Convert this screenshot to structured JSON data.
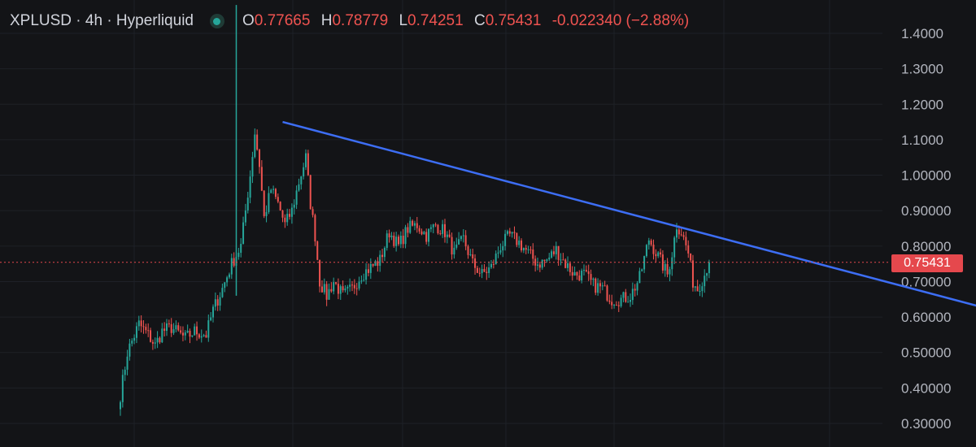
{
  "header": {
    "symbol": "XPLUSD · 4h · Hyperliquid",
    "o_label": "O",
    "o_value": "0.77665",
    "h_label": "H",
    "h_value": "0.78779",
    "l_label": "L",
    "l_value": "0.74251",
    "c_label": "C",
    "c_value": "0.75431",
    "change": "-0.022340 (−2.88%)"
  },
  "colors": {
    "up": "#26a69a",
    "down": "#ef5350",
    "trendline": "#3d6ef5",
    "price_tag": "#e5484d",
    "background": "#131417"
  },
  "status_icon": "market-open-dot-icon",
  "last_price_label": "0.75431",
  "chart_data": {
    "type": "candlestick",
    "y_axis_ticks": [
      "1.4000",
      "1.3000",
      "1.2000",
      "1.1000",
      "1.00000",
      "0.90000",
      "0.80000",
      "0.70000",
      "0.60000",
      "0.50000",
      "0.40000",
      "0.30000"
    ],
    "ylim": [
      0.27,
      1.45
    ],
    "last_price": 0.75431,
    "grid": true,
    "anchors": [
      [
        0,
        0.38
      ],
      [
        3,
        0.5
      ],
      [
        8,
        0.58
      ],
      [
        12,
        0.55
      ],
      [
        15,
        0.52
      ],
      [
        18,
        0.56
      ],
      [
        22,
        0.57
      ],
      [
        28,
        0.54
      ],
      [
        32,
        0.56
      ],
      [
        37,
        0.55
      ],
      [
        40,
        0.62
      ],
      [
        44,
        0.68
      ],
      [
        48,
        0.75
      ],
      [
        52,
        0.8
      ],
      [
        56,
        1.0
      ],
      [
        58,
        1.12
      ],
      [
        60,
        1.03
      ],
      [
        62,
        0.88
      ],
      [
        65,
        0.96
      ],
      [
        68,
        0.92
      ],
      [
        71,
        0.86
      ],
      [
        74,
        0.9
      ],
      [
        77,
        0.98
      ],
      [
        80,
        1.05
      ],
      [
        82,
        0.92
      ],
      [
        84,
        0.83
      ],
      [
        86,
        0.7
      ],
      [
        89,
        0.66
      ],
      [
        92,
        0.7
      ],
      [
        96,
        0.66
      ],
      [
        100,
        0.68
      ],
      [
        104,
        0.72
      ],
      [
        108,
        0.74
      ],
      [
        112,
        0.76
      ],
      [
        116,
        0.84
      ],
      [
        120,
        0.8
      ],
      [
        124,
        0.85
      ],
      [
        128,
        0.86
      ],
      [
        132,
        0.83
      ],
      [
        136,
        0.86
      ],
      [
        140,
        0.84
      ],
      [
        144,
        0.78
      ],
      [
        148,
        0.82
      ],
      [
        152,
        0.75
      ],
      [
        156,
        0.72
      ],
      [
        160,
        0.74
      ],
      [
        164,
        0.8
      ],
      [
        168,
        0.83
      ],
      [
        172,
        0.81
      ],
      [
        176,
        0.78
      ],
      [
        180,
        0.75
      ],
      [
        184,
        0.76
      ],
      [
        188,
        0.79
      ],
      [
        192,
        0.75
      ],
      [
        196,
        0.72
      ],
      [
        200,
        0.72
      ],
      [
        204,
        0.69
      ],
      [
        208,
        0.68
      ],
      [
        212,
        0.65
      ],
      [
        216,
        0.65
      ],
      [
        220,
        0.66
      ],
      [
        224,
        0.71
      ],
      [
        228,
        0.82
      ],
      [
        232,
        0.77
      ],
      [
        236,
        0.72
      ],
      [
        238,
        0.78
      ],
      [
        240,
        0.86
      ],
      [
        242,
        0.84
      ],
      [
        245,
        0.78
      ],
      [
        247,
        0.7
      ],
      [
        249,
        0.68
      ],
      [
        252,
        0.72
      ],
      [
        254,
        0.76
      ]
    ],
    "spike": {
      "index": 50,
      "high": 1.48,
      "close": 0.66
    },
    "trendline": {
      "start": {
        "index": 70,
        "price": 1.15
      },
      "end": {
        "index": 463,
        "price": 0.47
      }
    }
  }
}
